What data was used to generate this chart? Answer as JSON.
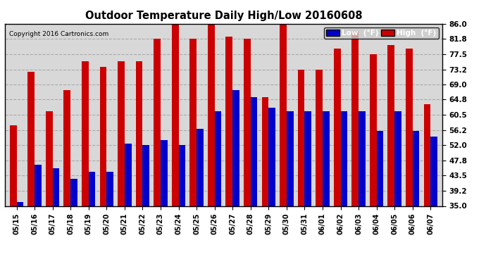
{
  "title": "Outdoor Temperature Daily High/Low 20160608",
  "copyright": "Copyright 2016 Cartronics.com",
  "dates": [
    "05/15",
    "05/16",
    "05/17",
    "05/18",
    "05/19",
    "05/20",
    "05/21",
    "05/22",
    "05/23",
    "05/24",
    "05/25",
    "05/26",
    "05/27",
    "05/28",
    "05/29",
    "05/30",
    "05/31",
    "06/01",
    "06/02",
    "06/03",
    "06/04",
    "06/05",
    "06/06",
    "06/07"
  ],
  "highs": [
    57.5,
    72.5,
    61.5,
    67.5,
    75.5,
    74.0,
    75.5,
    75.5,
    81.8,
    86.0,
    81.8,
    86.0,
    82.5,
    81.8,
    65.5,
    86.0,
    73.2,
    73.2,
    79.0,
    84.0,
    77.5,
    80.0,
    79.0,
    63.5
  ],
  "lows": [
    36.0,
    46.5,
    45.5,
    42.5,
    44.5,
    44.5,
    52.5,
    52.0,
    53.5,
    52.0,
    56.5,
    61.5,
    67.5,
    65.5,
    62.5,
    61.5,
    61.5,
    61.5,
    61.5,
    61.5,
    56.0,
    61.5,
    56.0,
    54.5
  ],
  "high_color": "#cc0000",
  "low_color": "#0000cc",
  "bg_color": "#ffffff",
  "plot_bg_color": "#d8d8d8",
  "grid_color": "#aaaaaa",
  "ylim_min": 35.0,
  "ylim_max": 86.0,
  "yticks": [
    35.0,
    39.2,
    43.5,
    47.8,
    52.0,
    56.2,
    60.5,
    64.8,
    69.0,
    73.2,
    77.5,
    81.8,
    86.0
  ],
  "bar_width": 0.38,
  "legend_low_label": "Low  (°F)",
  "legend_high_label": "High  (°F)"
}
